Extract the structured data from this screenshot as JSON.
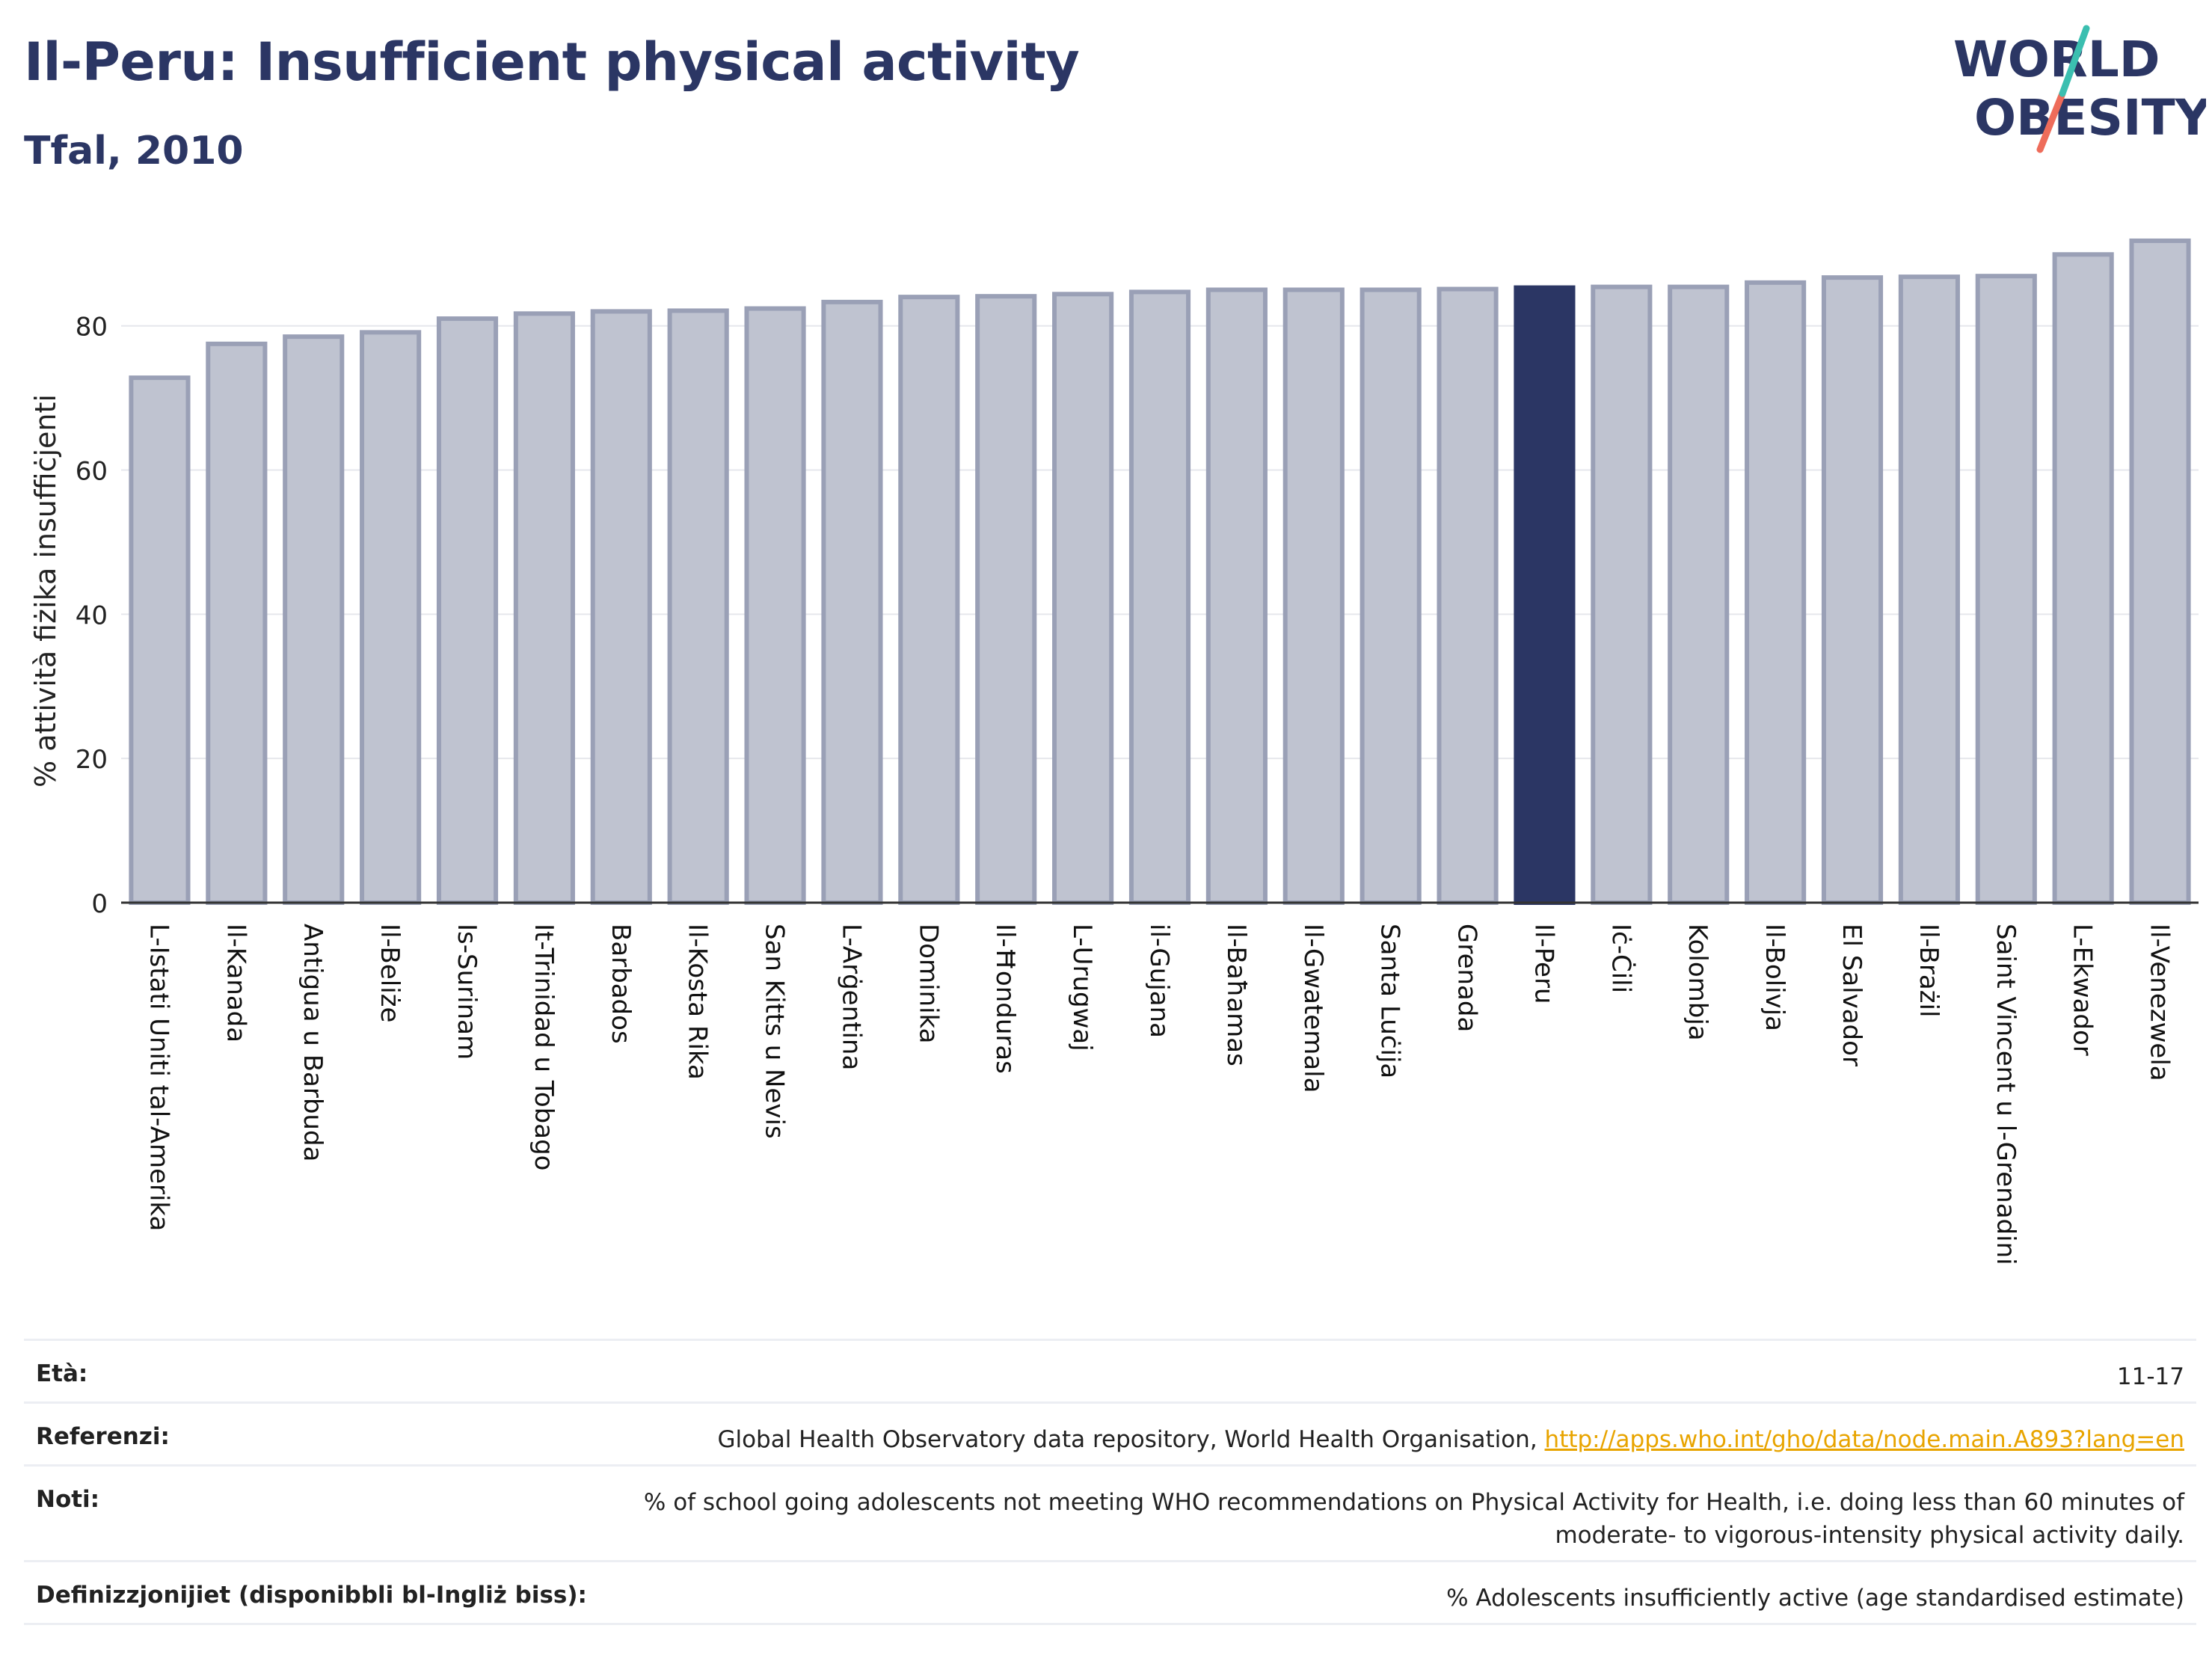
{
  "header": {
    "title": "Il-Peru: Insufficient physical activity",
    "subtitle": "Tfal, 2010"
  },
  "logo": {
    "line1": "WORLD",
    "line2": "OBESITY"
  },
  "colors": {
    "navy": "#2b3664",
    "bar_fill": "#bfc3d0",
    "bar_stroke": "#9aa0b6",
    "highlight": "#2b3664",
    "logo_teal": "#3bbfb0",
    "logo_coral": "#ee6c5a",
    "link": "#e8a400"
  },
  "chart_data": {
    "type": "bar",
    "ylabel": "% attività fiżika insuffiċjenti",
    "ylim": [
      0,
      92
    ],
    "yticks": [
      0,
      20,
      40,
      60,
      80
    ],
    "grid": true,
    "highlight": "Il-Peru",
    "categories": [
      "L-Istati Uniti tal-Amerika",
      "Il-Kanada",
      "Antigua u Barbuda",
      "Il-Beliże",
      "Is-Surinam",
      "It-Trinidad u Tobago",
      "Barbados",
      "Il-Kosta Rika",
      "San Kitts u Nevis",
      "L-Arġentina",
      "Dominika",
      "Il-Ħonduras",
      "L-Urugwaj",
      "il-Gujana",
      "Il-Baħamas",
      "Il-Gwatemala",
      "Santa Luċija",
      "Grenada",
      "Il-Peru",
      "Iċ-Ċili",
      "Kolombja",
      "Il-Bolivja",
      "El Salvador",
      "Il-Brażil",
      "Saint Vincent u l-Grenadini",
      "L-Ekwador",
      "Il-Venezwela"
    ],
    "values": [
      72.8,
      77.5,
      78.5,
      79.1,
      81.0,
      81.7,
      82.0,
      82.1,
      82.4,
      83.3,
      84.0,
      84.1,
      84.4,
      84.7,
      85.0,
      85.0,
      85.0,
      85.1,
      85.3,
      85.4,
      85.4,
      86.0,
      86.7,
      86.8,
      86.9,
      89.9,
      91.8
    ]
  },
  "meta": {
    "age": {
      "label": "Età:",
      "value": "11-17"
    },
    "refs": {
      "label": "Referenzi:",
      "text": "Global Health Observatory data repository, World Health Organisation, ",
      "link": "http://apps.who.int/gho/data/node.main.A893?lang=en"
    },
    "notes": {
      "label": "Noti:",
      "line1": "% of school going adolescents not meeting WHO recommendations on Physical Activity for Health, i.e. doing less than 60 minutes of",
      "line2": "moderate- to vigorous-intensity physical activity daily."
    },
    "defs": {
      "label": "Definizzjonijiet (disponibbli bl-Ingliż biss):",
      "value": "% Adolescents insufficiently active (age standardised estimate)"
    }
  }
}
